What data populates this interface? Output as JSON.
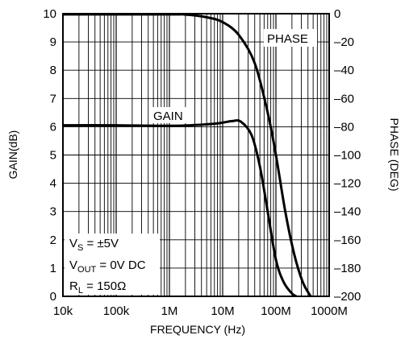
{
  "chart_data": {
    "type": "line",
    "title": "",
    "xlabel": "FREQUENCY (Hz)",
    "ylabel_left": "GAIN(dB)",
    "ylabel_right": "PHASE (DEG)",
    "x_scale": "log",
    "x_ticks": [
      {
        "value": 10000,
        "label": "10k"
      },
      {
        "value": 100000,
        "label": "100k"
      },
      {
        "value": 1000000,
        "label": "1M"
      },
      {
        "value": 10000000,
        "label": "10M"
      },
      {
        "value": 100000000,
        "label": "100M"
      },
      {
        "value": 1000000000,
        "label": "1000M"
      }
    ],
    "xlim": [
      10000,
      1000000000
    ],
    "ylim_left": [
      0,
      10
    ],
    "ylim_right": [
      -200,
      0
    ],
    "y_left_ticks": [
      "0",
      "1",
      "2",
      "3",
      "4",
      "5",
      "6",
      "7",
      "8",
      "9",
      "10"
    ],
    "y_right_ticks": [
      "0",
      "–20",
      "–40",
      "–60",
      "–80",
      "–100",
      "–120",
      "–140",
      "–160",
      "–180",
      "–200"
    ],
    "grid": true,
    "series": [
      {
        "name": "GAIN",
        "axis": "left",
        "points": [
          [
            10000,
            6.05
          ],
          [
            100000,
            6.05
          ],
          [
            1000000,
            6.03
          ],
          [
            3000000,
            6.06
          ],
          [
            8000000,
            6.12
          ],
          [
            15000000,
            6.2
          ],
          [
            22000000,
            6.18
          ],
          [
            35000000,
            5.7
          ],
          [
            50000000,
            4.6
          ],
          [
            70000000,
            3.0
          ],
          [
            100000000,
            1.3
          ],
          [
            140000000,
            0.5
          ],
          [
            200000000,
            0.1
          ],
          [
            240000000,
            0.0
          ]
        ]
      },
      {
        "name": "PHASE",
        "axis": "right",
        "points": [
          [
            10000,
            -0.5
          ],
          [
            1000000,
            -0.5
          ],
          [
            2000000,
            -0.6
          ],
          [
            5000000,
            -2.5
          ],
          [
            10000000,
            -6
          ],
          [
            20000000,
            -15
          ],
          [
            40000000,
            -35
          ],
          [
            70000000,
            -70
          ],
          [
            100000000,
            -100
          ],
          [
            150000000,
            -140
          ],
          [
            220000000,
            -170
          ],
          [
            320000000,
            -190
          ],
          [
            450000000,
            -200
          ]
        ]
      }
    ],
    "annotations": {
      "phase_label": "PHASE",
      "gain_label": "GAIN",
      "vs_main": "V",
      "vs_sub": "S",
      "vs_rest": " = ±5V",
      "vout_main": "V",
      "vout_sub": "OUT",
      "vout_rest": " = 0V DC",
      "rl_main": "R",
      "rl_sub": "L",
      "rl_rest": " = 150Ω"
    }
  }
}
